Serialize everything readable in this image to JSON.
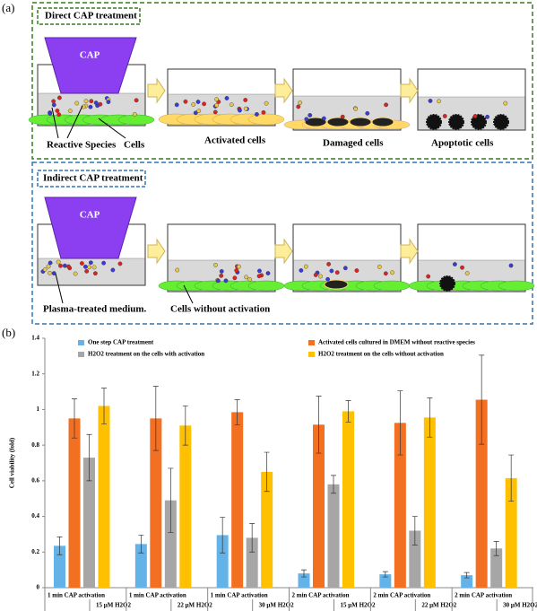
{
  "panel_a": {
    "label": "(a)",
    "direct": {
      "title": "Direct CAP treatment",
      "source": "CAP",
      "labels": [
        "Reactive Species",
        "Cells",
        "Activated cells",
        "Damaged cells",
        "Apoptotic cells"
      ]
    },
    "indirect": {
      "title": "Indirect CAP treatment",
      "source": "CAP",
      "labels": [
        "Plasma-treated medium.",
        "Cells without activation"
      ]
    }
  },
  "chart_data": {
    "type": "bar",
    "label": "(b)",
    "y_label": "Cell viability (fold)",
    "categories": [
      "1 min CAP activation",
      "1 min CAP activation",
      "1 min CAP activation",
      "2 min CAP activation",
      "2 min CAP activation",
      "2 min CAP activation"
    ],
    "sub_categories": [
      "15 μM H2O2",
      "22 μM H2O2",
      "30 μM H2O2",
      "15 μM H2O2",
      "22 μM H2O2",
      "30 μM H2O2"
    ],
    "series": [
      {
        "name": "One step CAP treatment",
        "color": "#63b3e8",
        "values": [
          0.235,
          0.245,
          0.295,
          0.08,
          0.075,
          0.07
        ],
        "errors": [
          0.05,
          0.05,
          0.1,
          0.02,
          0.015,
          0.015
        ]
      },
      {
        "name": "Activated cells cultured in DMEM without reactive species",
        "color": "#f36f21",
        "values": [
          0.95,
          0.95,
          0.985,
          0.915,
          0.925,
          1.055
        ],
        "errors": [
          0.11,
          0.18,
          0.07,
          0.16,
          0.18,
          0.25
        ]
      },
      {
        "name": "H2O2 treatment on the cells with activation",
        "color": "#a6a6a6",
        "values": [
          0.73,
          0.49,
          0.28,
          0.58,
          0.32,
          0.22
        ],
        "errors": [
          0.13,
          0.18,
          0.08,
          0.05,
          0.08,
          0.04
        ]
      },
      {
        "name": "H2O2 treatment on the cells without activation",
        "color": "#ffc000",
        "values": [
          1.02,
          0.91,
          0.65,
          0.99,
          0.955,
          0.615
        ],
        "errors": [
          0.1,
          0.11,
          0.11,
          0.06,
          0.11,
          0.13
        ]
      }
    ],
    "ylim": [
      0,
      1.4
    ],
    "yticks": [
      0,
      0.2,
      0.4,
      0.6,
      0.8,
      1,
      1.2,
      1.4
    ]
  }
}
